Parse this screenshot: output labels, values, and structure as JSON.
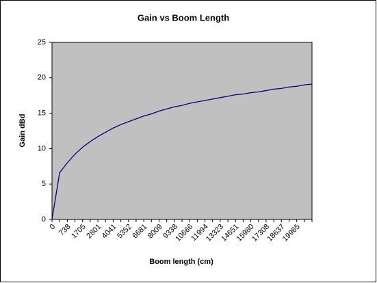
{
  "chart_data": {
    "type": "line",
    "title": "Gain vs Boom Length",
    "x_label": "Boom length  (cm)",
    "y_label": "Gain dBd",
    "categories": [
      "0",
      null,
      "738",
      null,
      "1705",
      null,
      "2801",
      null,
      "4041",
      null,
      "5352",
      null,
      "6681",
      null,
      "8009",
      null,
      "9338",
      null,
      "10666",
      null,
      "11994",
      null,
      "13323",
      null,
      "14651",
      null,
      "15980",
      null,
      "17308",
      null,
      "18637",
      null,
      "19965",
      null,
      null
    ],
    "series": [
      {
        "name": "Gain",
        "color": "#000080",
        "values": [
          0,
          6.6,
          8.0,
          9.2,
          10.2,
          11.0,
          11.7,
          12.3,
          12.9,
          13.4,
          13.8,
          14.2,
          14.6,
          14.9,
          15.3,
          15.6,
          15.9,
          16.1,
          16.4,
          16.6,
          16.8,
          17.0,
          17.2,
          17.4,
          17.6,
          17.7,
          17.9,
          18.0,
          18.2,
          18.4,
          18.5,
          18.7,
          18.8,
          19.0,
          19.1
        ]
      }
    ],
    "ylim": [
      0,
      25
    ],
    "yticks": [
      0,
      5,
      10,
      15,
      20,
      25
    ],
    "grid": false,
    "plot_background": "#c0c0c0"
  }
}
